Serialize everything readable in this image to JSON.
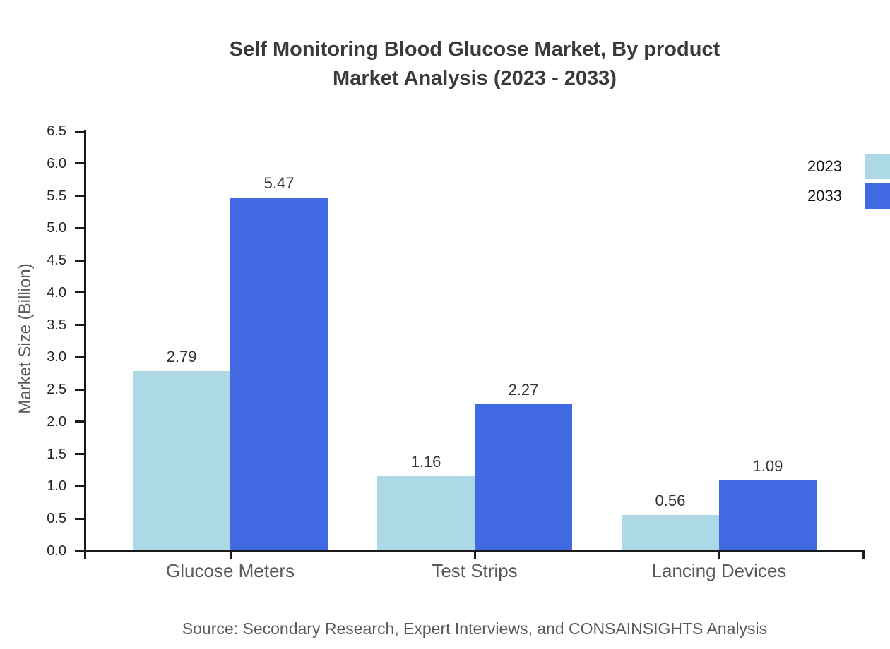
{
  "title": {
    "line1": "Self Monitoring Blood Glucose Market, By product",
    "line2": "Market Analysis (2023 - 2033)"
  },
  "source_note": "Source: Secondary Research, Expert Interviews, and CONSAINSIGHTS Analysis",
  "legend": {
    "items": [
      {
        "label": "2023",
        "color": "#add8e6"
      },
      {
        "label": "2033",
        "color": "#4169e1"
      }
    ]
  },
  "colors": {
    "series_2023": "#add8e6",
    "series_2033": "#4169e1",
    "axis": "#1a1a1a",
    "tick_label": "#262626",
    "category_label": "#5a5a5a",
    "title_text": "#3a3a3a",
    "value_label": "#333333",
    "source_text": "#595959",
    "background": "#ffffff"
  },
  "chart_data": {
    "type": "bar",
    "title": "Self Monitoring Blood Glucose Market, By product Market Analysis (2023 - 2033)",
    "categories": [
      "Glucose Meters",
      "Test Strips",
      "Lancing Devices"
    ],
    "series": [
      {
        "name": "2023",
        "color": "#add8e6",
        "values": [
          2.79,
          1.16,
          0.56
        ]
      },
      {
        "name": "2033",
        "color": "#4169e1",
        "values": [
          5.47,
          2.27,
          1.09
        ]
      }
    ],
    "xlabel": "",
    "ylabel": "Market Size (Billion)",
    "ylim": [
      0,
      6.5
    ],
    "ytick_step": 0.5,
    "ytick_format_decimals": 1,
    "value_label_decimals": 2,
    "grid": false,
    "legend_position": "top-right",
    "value_labels": true
  }
}
